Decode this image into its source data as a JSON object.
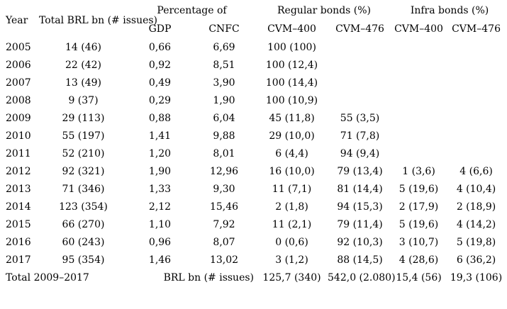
{
  "page": {
    "background_color": "#ffffff",
    "text_color": "#000000"
  },
  "table": {
    "header": {
      "year_label": "Year",
      "total_label": "Total BRL bn (# issues)",
      "groups": [
        {
          "label": "Percentage of",
          "cols": [
            "GDP",
            "CNFC"
          ]
        },
        {
          "label": "Regular bonds (%)",
          "cols": [
            "CVM–400",
            "CVM–476"
          ]
        },
        {
          "label": "Infra bonds (%)",
          "cols": [
            "CVM–400",
            "CVM–476"
          ]
        }
      ]
    },
    "rows": [
      {
        "cells": [
          "2005",
          "14 (46)",
          "0,66",
          "6,69",
          "100 (100)",
          "",
          "",
          ""
        ]
      },
      {
        "cells": [
          "2006",
          "22 (42)",
          "0,92",
          "8,51",
          "100 (12,4)",
          "",
          "",
          ""
        ]
      },
      {
        "cells": [
          "2007",
          "13 (49)",
          "0,49",
          "3,90",
          "100 (14,4)",
          "",
          "",
          ""
        ]
      },
      {
        "cells": [
          "2008",
          "9 (37)",
          "0,29",
          "1,90",
          "100 (10,9)",
          "",
          "",
          ""
        ]
      },
      {
        "cells": [
          "2009",
          "29 (113)",
          "0,88",
          "6,04",
          "45 (11,8)",
          "55 (3,5)",
          "",
          ""
        ]
      },
      {
        "cells": [
          "2010",
          "55 (197)",
          "1,41",
          "9,88",
          "29 (10,0)",
          "71 (7,8)",
          "",
          ""
        ]
      },
      {
        "cells": [
          "2011",
          "52 (210)",
          "1,20",
          "8,01",
          "6 (4,4)",
          "94 (9,4)",
          "",
          ""
        ]
      },
      {
        "cells": [
          "2012",
          "92 (321)",
          "1,90",
          "12,96",
          "16 (10,0)",
          "79 (13,4)",
          "1 (3,6)",
          "4 (6,6)"
        ]
      },
      {
        "cells": [
          "2013",
          "71 (346)",
          "1,33",
          "9,30",
          "11 (7,1)",
          "81 (14,4)",
          "5 (19,6)",
          "4 (10,4)"
        ]
      },
      {
        "cells": [
          "2014",
          "123 (354)",
          "2,12",
          "15,46",
          "2 (1,8)",
          "94 (15,3)",
          "2 (17,9)",
          "2 (18,9)"
        ]
      },
      {
        "cells": [
          "2015",
          "66 (270)",
          "1,10",
          "7,92",
          "11 (2,1)",
          "79 (11,4)",
          "5 (19,6)",
          "4 (14,2)"
        ]
      },
      {
        "cells": [
          "2016",
          "60 (243)",
          "0,96",
          "8,07",
          "0 (0,6)",
          "92 (10,3)",
          "3 (10,7)",
          "5 (19,8)"
        ]
      },
      {
        "cells": [
          "2017",
          "95 (354)",
          "1,46",
          "13,02",
          "3 (1,2)",
          "88 (14,5)",
          "4 (28,6)",
          "6 (36,2)"
        ]
      }
    ],
    "footer": {
      "label": "Total 2009–2017",
      "unit_label": "BRL bn (# issues)",
      "values": [
        "125,7 (340)",
        "542,0 (2.080)",
        "15,4 (56)",
        "19,3 (106)"
      ]
    }
  }
}
